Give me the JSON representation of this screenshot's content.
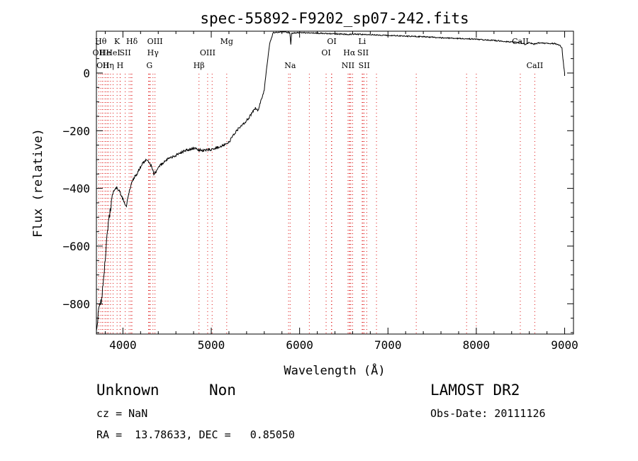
{
  "chart_data": {
    "type": "line",
    "title": "spec-55892-F9202_sp07-242.fits",
    "xlabel": "Wavelength (Å)",
    "ylabel": "Flux (relative)",
    "xlim": [
      3700,
      9100
    ],
    "ylim": [
      -905,
      145
    ],
    "xticks": [
      4000,
      5000,
      6000,
      7000,
      8000,
      9000
    ],
    "yticks": [
      0,
      -200,
      -400,
      -600,
      -800
    ],
    "grid": false,
    "legend": "none",
    "series": [
      {
        "x": [
          3700,
          3720,
          3740,
          3760,
          3780,
          3800,
          3820,
          3850,
          3880,
          3900,
          3930,
          3960,
          3990,
          4020,
          4040,
          4060,
          4080,
          4100,
          4130,
          4160,
          4190,
          4220,
          4250,
          4270,
          4300,
          4330,
          4350,
          4380,
          4420,
          4500,
          4600,
          4700,
          4800,
          4850,
          4900,
          4950,
          5000,
          5050,
          5100,
          5150,
          5200,
          5250,
          5300,
          5350,
          5400,
          5450,
          5500,
          5530,
          5560,
          5580,
          5600,
          5620,
          5640,
          5660,
          5700,
          5800,
          5890,
          5900,
          5910,
          6000,
          6200,
          6400,
          6560,
          6600,
          6800,
          7000,
          7200,
          7400,
          7600,
          7800,
          8000,
          8200,
          8400,
          8500,
          8550,
          8600,
          8650,
          8700,
          8800,
          8900,
          8950,
          8970,
          8990,
          9000
        ],
        "y": [
          -900,
          -830,
          -810,
          -780,
          -720,
          -640,
          -560,
          -490,
          -430,
          -405,
          -398,
          -410,
          -430,
          -450,
          -460,
          -430,
          -400,
          -380,
          -360,
          -350,
          -330,
          -315,
          -305,
          -300,
          -310,
          -330,
          -350,
          -340,
          -320,
          -300,
          -285,
          -270,
          -260,
          -265,
          -270,
          -265,
          -265,
          -260,
          -255,
          -250,
          -240,
          -215,
          -195,
          -180,
          -165,
          -145,
          -120,
          -130,
          -100,
          -80,
          -60,
          0,
          50,
          100,
          140,
          142,
          140,
          100,
          138,
          140,
          138,
          136,
          134,
          135,
          133,
          131,
          128,
          126,
          122,
          120,
          117,
          113,
          108,
          106,
          100,
          105,
          100,
          104,
          103,
          102,
          95,
          85,
          20,
          0
        ]
      }
    ],
    "line_markers": {
      "top": [
        {
          "w": 3727,
          "row": 2,
          "label": "OII"
        },
        {
          "w": 3750,
          "row": 1,
          "label": "Hθ"
        },
        {
          "w": 3772,
          "row": 3,
          "label": "OII"
        },
        {
          "w": 3800,
          "row": 2,
          "label": "He"
        },
        {
          "w": 3835,
          "row": 3,
          "label": "Hη"
        },
        {
          "w": 3889,
          "row": 2,
          "label": "HeI"
        },
        {
          "w": 3934,
          "row": 1,
          "label": "K"
        },
        {
          "w": 3968,
          "row": 3,
          "label": "H"
        },
        {
          "w": 4026,
          "row": 2,
          "label": "SII"
        },
        {
          "w": 4102,
          "row": 1,
          "label": "Hδ"
        },
        {
          "w": 4300,
          "row": 3,
          "label": "G"
        },
        {
          "w": 4340,
          "row": 2,
          "label": "Hγ"
        },
        {
          "w": 4363,
          "row": 1,
          "label": "OIII"
        },
        {
          "w": 4861,
          "row": 3,
          "label": "Hβ"
        },
        {
          "w": 4959,
          "row": 2,
          "label": "OIII"
        },
        {
          "w": 5175,
          "row": 1,
          "label": "Mg"
        },
        {
          "w": 5893,
          "row": 3,
          "label": "Na"
        },
        {
          "w": 6300,
          "row": 2,
          "label": "OI"
        },
        {
          "w": 6364,
          "row": 1,
          "label": "OI"
        },
        {
          "w": 6548,
          "row": 3,
          "label": "NII"
        },
        {
          "w": 6563,
          "row": 2,
          "label": "Hα"
        },
        {
          "w": 6708,
          "row": 1,
          "label": "Li"
        },
        {
          "w": 6717,
          "row": 2,
          "label": "SII"
        },
        {
          "w": 6731,
          "row": 3,
          "label": "SII"
        },
        {
          "w": 8498,
          "row": 1,
          "label": "CaII"
        },
        {
          "w": 8662,
          "row": 3,
          "label": "CaII"
        }
      ],
      "extra_dotted": [
        3700,
        3770,
        3798,
        3820,
        3860,
        3970,
        4070,
        4090,
        4290,
        4310,
        5010,
        5875,
        6110,
        6300,
        6360,
        6570,
        6580,
        6600,
        6760,
        6870,
        7320,
        7890,
        8000
      ]
    }
  },
  "info": {
    "class": "Unknown",
    "subclass": "Non",
    "survey": "LAMOST DR2",
    "cz": "cz = NaN",
    "obs_date": "Obs-Date: 20111126",
    "coords": "RA =  13.78633, DEC =   0.85050"
  }
}
